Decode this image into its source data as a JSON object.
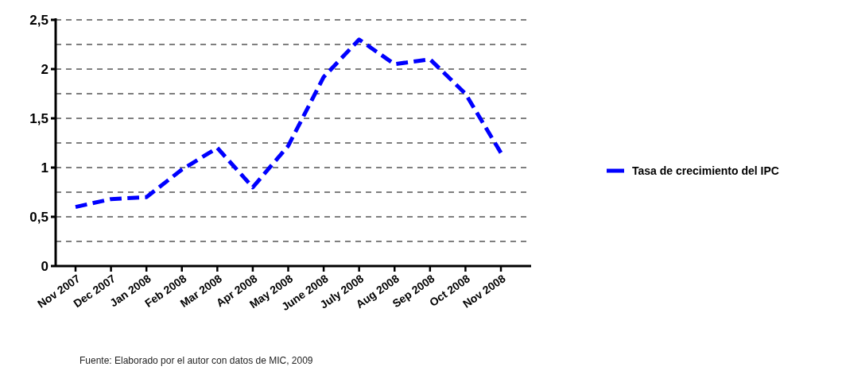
{
  "chart_data": {
    "type": "line",
    "categories": [
      "Nov 2007",
      "Dec 2007",
      "Jan 2008",
      "Feb 2008",
      "Mar 2008",
      "Apr 2008",
      "May 2008",
      "June 2008",
      "July 2008",
      "Aug 2008",
      "Sep 2008",
      "Oct 2008",
      "Nov 2008"
    ],
    "series": [
      {
        "name": "Tasa de crecimiento del IPC",
        "color": "#0000ff",
        "values": [
          0.6,
          0.68,
          0.7,
          0.98,
          1.2,
          0.8,
          1.22,
          1.92,
          2.3,
          2.05,
          2.1,
          1.75,
          1.15
        ]
      }
    ],
    "ylim": [
      0,
      2.5
    ],
    "yticks": [
      {
        "value": 0,
        "label": "0"
      },
      {
        "value": 0.25,
        "label": null
      },
      {
        "value": 0.5,
        "label": "0,5"
      },
      {
        "value": 0.75,
        "label": null
      },
      {
        "value": 1,
        "label": "1"
      },
      {
        "value": 1.25,
        "label": null
      },
      {
        "value": 1.5,
        "label": "1,5"
      },
      {
        "value": 1.75,
        "label": null
      },
      {
        "value": 2,
        "label": "2"
      },
      {
        "value": 2.25,
        "label": null
      },
      {
        "value": 2.5,
        "label": "2,5"
      }
    ],
    "grid": "y",
    "legend": "right",
    "line_style": "dashed",
    "annotations": [
      "Fuente: Elaborado por el autor con datos de MIC, 2009"
    ]
  }
}
